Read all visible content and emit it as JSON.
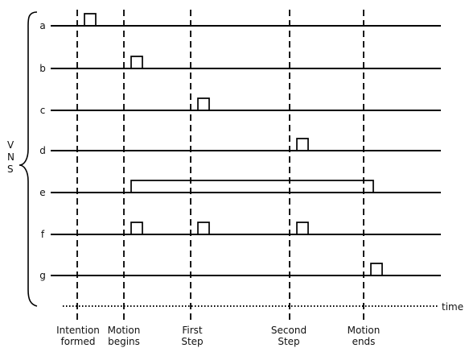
{
  "brace_label": [
    "V",
    "N",
    "S"
  ],
  "time_label": "time",
  "rows": [
    "a",
    "b",
    "c",
    "d",
    "e",
    "f",
    "g"
  ],
  "markers": [
    {
      "id": "intention",
      "lines": [
        "Intention",
        "formed"
      ]
    },
    {
      "id": "motion-begins",
      "lines": [
        "Motion",
        "begins"
      ]
    },
    {
      "id": "first-step",
      "lines": [
        "First",
        "Step"
      ]
    },
    {
      "id": "second-step",
      "lines": [
        "Second",
        "Step"
      ]
    },
    {
      "id": "motion-ends",
      "lines": [
        "Motion",
        "ends"
      ]
    }
  ],
  "pulses": [
    {
      "row": "a",
      "start": "intention",
      "end": "intention",
      "duration": "short"
    },
    {
      "row": "b",
      "start": "motion-begins",
      "end": "motion-begins",
      "duration": "short"
    },
    {
      "row": "c",
      "start": "first-step",
      "end": "first-step",
      "duration": "short"
    },
    {
      "row": "d",
      "start": "second-step",
      "end": "second-step",
      "duration": "short"
    },
    {
      "row": "e",
      "start": "motion-begins",
      "end": "motion-ends",
      "duration": "long"
    },
    {
      "row": "f",
      "start": "motion-begins",
      "end": "motion-begins",
      "duration": "short"
    },
    {
      "row": "f",
      "start": "first-step",
      "end": "first-step",
      "duration": "short"
    },
    {
      "row": "f",
      "start": "second-step",
      "end": "second-step",
      "duration": "short"
    },
    {
      "row": "g",
      "start": "motion-ends",
      "end": "motion-ends",
      "duration": "short"
    }
  ]
}
